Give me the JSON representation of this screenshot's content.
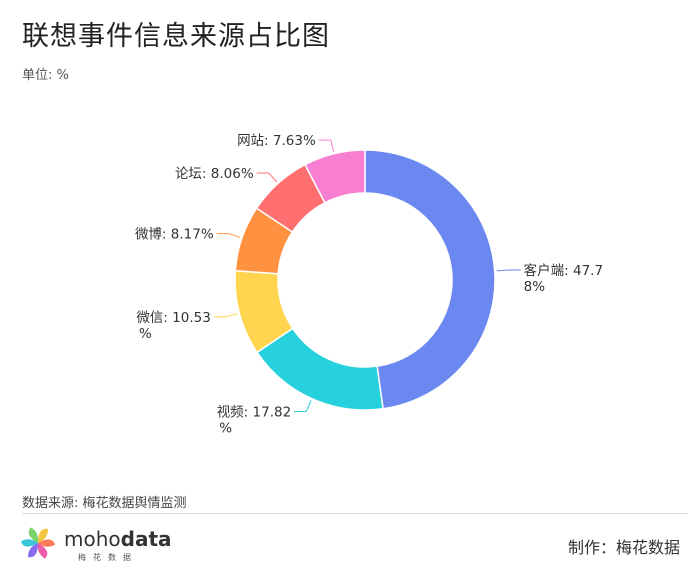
{
  "header": {
    "title": "联想事件信息来源占比图",
    "unit": "单位: %"
  },
  "chart_data": {
    "type": "pie",
    "variant": "donut",
    "title": "联想事件信息来源占比图",
    "unit": "%",
    "slices": [
      {
        "label": "客户端",
        "value": 47.78,
        "color": "#6b88f0",
        "label_lines": [
          "客户端: 47.7",
          "8%"
        ],
        "label_side": "right"
      },
      {
        "label": "视频",
        "value": 17.82,
        "color": "#26d0dc",
        "label_lines": [
          "视频: 17.82",
          "%"
        ],
        "label_side": "left"
      },
      {
        "label": "微信",
        "value": 10.53,
        "color": "#ffd54f",
        "label_lines": [
          "微信: 10.53",
          "%"
        ],
        "label_side": "left"
      },
      {
        "label": "微博",
        "value": 8.17,
        "color": "#ff9140",
        "label_lines": [
          "微博: 8.17%"
        ],
        "label_side": "left"
      },
      {
        "label": "论坛",
        "value": 8.06,
        "color": "#ff6f6f",
        "label_lines": [
          "论坛: 8.06%"
        ],
        "label_side": "left"
      },
      {
        "label": "网站",
        "value": 7.63,
        "color": "#f77ed0",
        "label_lines": [
          "网站: 7.63%"
        ],
        "label_side": "left"
      }
    ]
  },
  "footer": {
    "source": "数据来源: 梅花数据舆情监测",
    "logo_text_light": "moho",
    "logo_text_bold": "data",
    "logo_sub": "梅花数据",
    "maker": "制作：梅花数据"
  },
  "logo_colors": [
    "#f4c542",
    "#ff7a59",
    "#ef5da8",
    "#8a6cf0",
    "#38c6d9",
    "#7bd36b"
  ]
}
